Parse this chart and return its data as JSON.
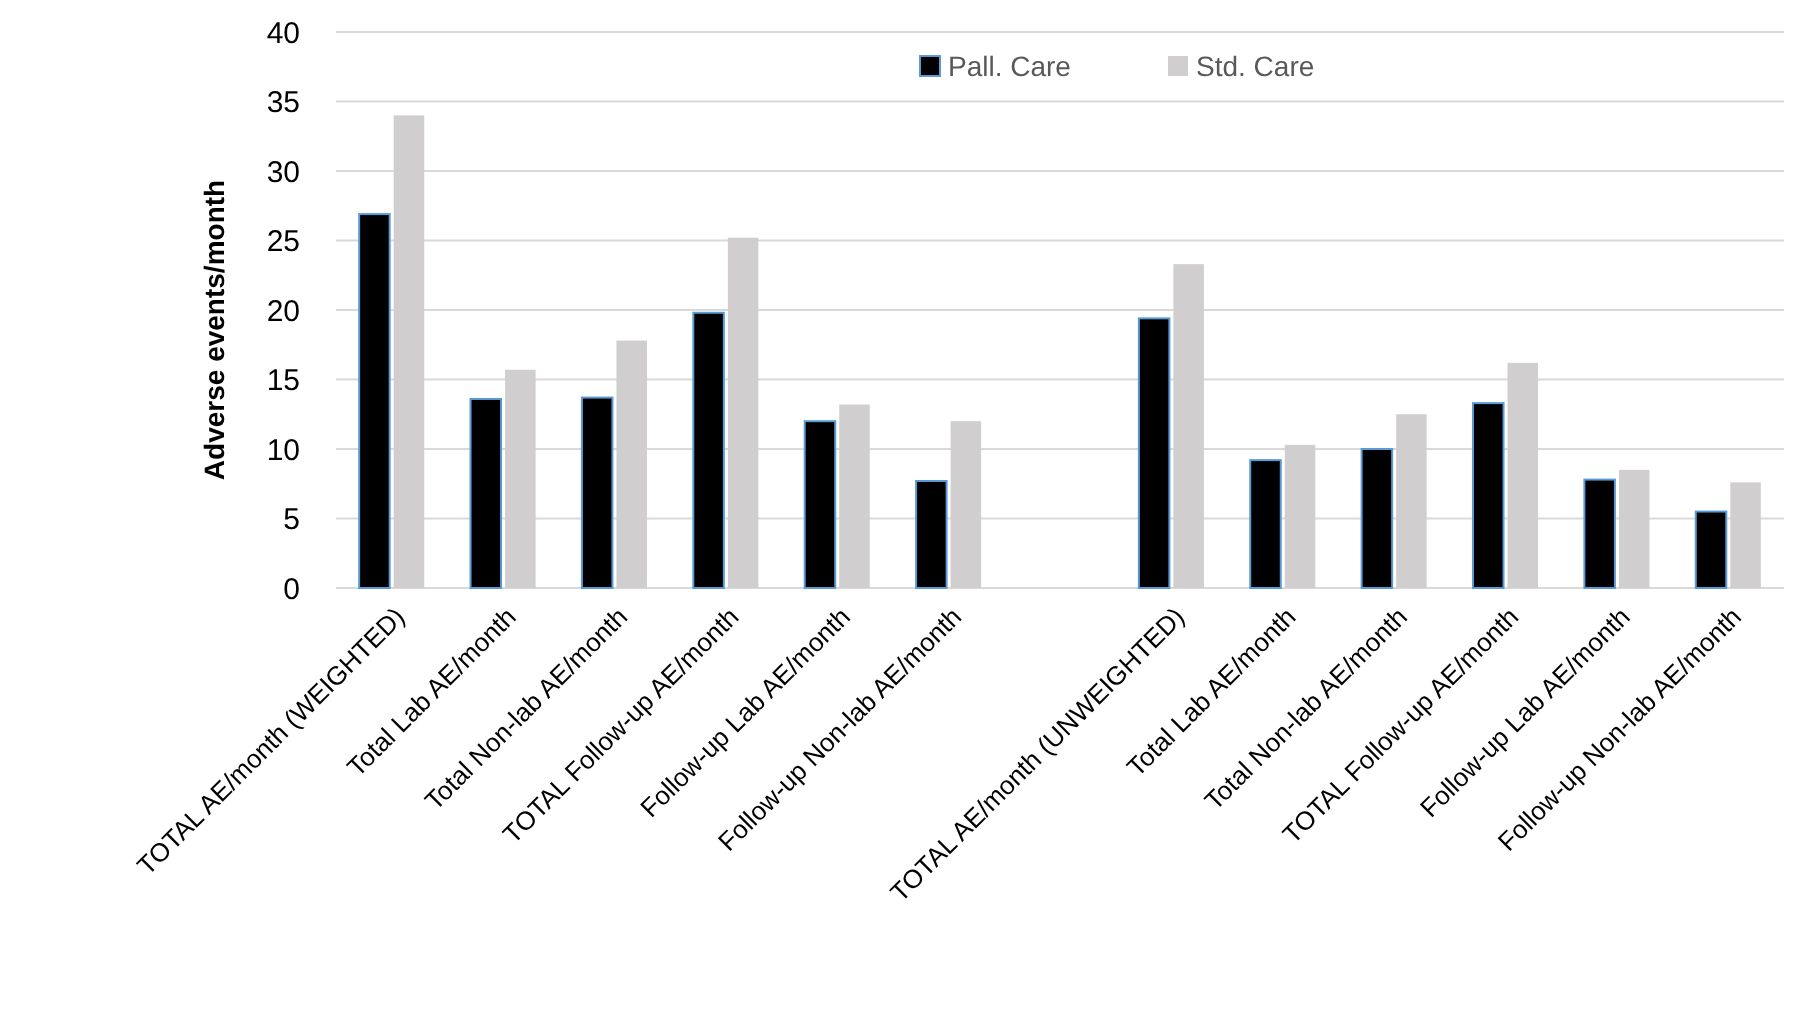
{
  "chart_data": {
    "type": "bar",
    "ylabel": "Adverse events/month",
    "categories": [
      "TOTAL AE/month (WEIGHTED)",
      "Total Lab AE/month",
      "Total Non-lab AE/month",
      "TOTAL Follow-up AE/month",
      "Follow-up Lab AE/month",
      "Follow-up Non-lab AE/month",
      null,
      "TOTAL AE/month (UNWEIGHTED)",
      "Total Lab AE/month",
      "Total Non-lab AE/month",
      "TOTAL Follow-up AE/month",
      "Follow-up Lab AE/month",
      "Follow-up Non-lab AE/month"
    ],
    "series": [
      {
        "name": "Pall. Care",
        "color": "#000000",
        "values": [
          26.9,
          13.6,
          13.7,
          19.8,
          12.0,
          7.7,
          null,
          19.4,
          9.2,
          10.0,
          13.3,
          7.8,
          5.5
        ]
      },
      {
        "name": "Std. Care",
        "color": "#d0cece",
        "values": [
          34.0,
          15.7,
          17.8,
          25.2,
          13.2,
          12.0,
          null,
          23.3,
          10.3,
          12.5,
          16.2,
          8.5,
          7.6
        ]
      }
    ],
    "ylim": [
      0,
      40
    ],
    "yticks": [
      0,
      5,
      10,
      15,
      20,
      25,
      30,
      35,
      40
    ],
    "grid": "y",
    "legend": "top"
  }
}
